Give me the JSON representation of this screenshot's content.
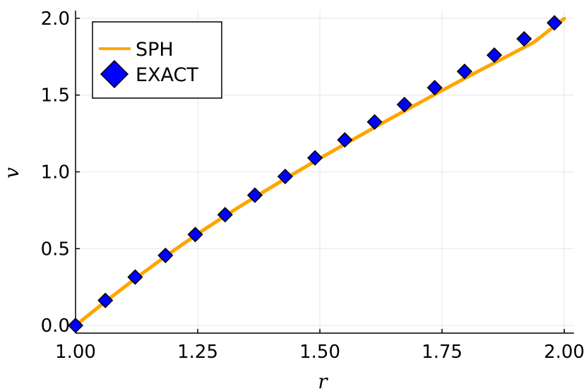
{
  "chart_data": {
    "type": "line",
    "title": "",
    "xlabel": "r",
    "ylabel": "v",
    "xlim": [
      1.0,
      2.02
    ],
    "ylim": [
      -0.05,
      2.05
    ],
    "xticks": [
      1.0,
      1.25,
      1.5,
      1.75,
      2.0
    ],
    "xtick_labels": [
      "1.00",
      "1.25",
      "1.50",
      "1.75",
      "2.00"
    ],
    "yticks": [
      0.0,
      0.5,
      1.0,
      1.5,
      2.0
    ],
    "ytick_labels": [
      "0.0",
      "0.5",
      "1.0",
      "1.5",
      "2.0"
    ],
    "grid": true,
    "legend_position": "top-left",
    "series": [
      {
        "name": "SPH",
        "type": "line",
        "color": "#FFA500",
        "x": [
          1.0,
          1.0625,
          1.125,
          1.1875,
          1.25,
          1.3125,
          1.375,
          1.4375,
          1.5,
          1.5625,
          1.625,
          1.6875,
          1.75,
          1.8125,
          1.875,
          1.9375,
          2.0
        ],
        "y": [
          0.0,
          0.159,
          0.311,
          0.458,
          0.596,
          0.727,
          0.851,
          0.971,
          1.088,
          1.201,
          1.313,
          1.422,
          1.53,
          1.636,
          1.739,
          1.843,
          1.998
        ]
      },
      {
        "name": "EXACT",
        "type": "scatter",
        "marker": "diamond",
        "color": "#0000FF",
        "x": [
          1.0,
          1.061,
          1.122,
          1.184,
          1.245,
          1.306,
          1.367,
          1.429,
          1.49,
          1.551,
          1.612,
          1.673,
          1.735,
          1.796,
          1.857,
          1.918,
          1.98
        ],
        "y": [
          0.0,
          0.163,
          0.315,
          0.456,
          0.592,
          0.721,
          0.848,
          0.97,
          1.091,
          1.208,
          1.325,
          1.438,
          1.548,
          1.654,
          1.76,
          1.866,
          1.97
        ]
      }
    ]
  }
}
